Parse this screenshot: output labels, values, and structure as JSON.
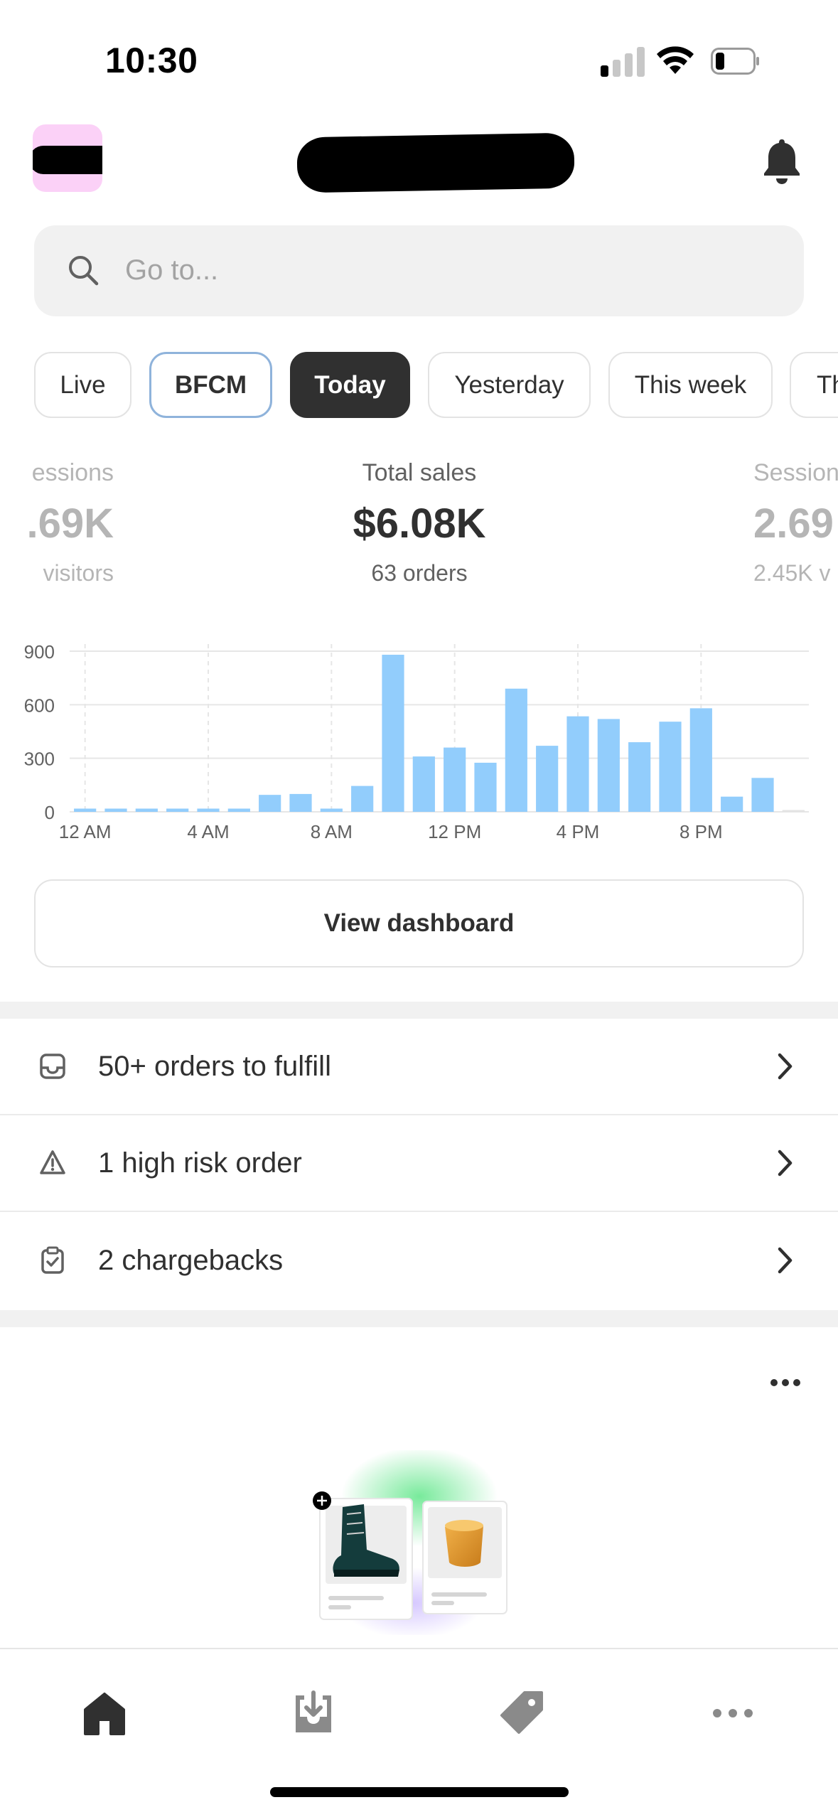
{
  "status_bar": {
    "time": "10:30"
  },
  "search": {
    "placeholder": "Go to..."
  },
  "date_ranges": [
    {
      "label": "Live"
    },
    {
      "label": "BFCM"
    },
    {
      "label": "Today",
      "selected": true
    },
    {
      "label": "Yesterday"
    },
    {
      "label": "This week"
    },
    {
      "label": "Th"
    }
  ],
  "metrics": {
    "left": {
      "label": "essions",
      "value": ".69K",
      "sub": "visitors"
    },
    "center": {
      "label": "Total sales",
      "value": "$6.08K",
      "sub": "63 orders"
    },
    "right": {
      "label": "Session",
      "value": "2.69",
      "sub": "2.45K v"
    }
  },
  "chart_data": {
    "type": "bar",
    "y_ticks": [
      "900",
      "600",
      "300",
      "0"
    ],
    "x_ticks": [
      "12 AM",
      "4 AM",
      "8 AM",
      "12 PM",
      "4 PM",
      "8 PM"
    ],
    "ylim": [
      0,
      900
    ],
    "grid": true,
    "bar_color": "#92cdfc",
    "values": [
      18,
      18,
      18,
      18,
      18,
      18,
      95,
      100,
      18,
      145,
      880,
      310,
      360,
      275,
      690,
      370,
      535,
      520,
      390,
      505,
      580,
      85,
      190,
      10
    ]
  },
  "dashboard_button": {
    "label": "View dashboard"
  },
  "tasks": [
    {
      "icon": "inbox-icon",
      "label": "50+ orders to fulfill"
    },
    {
      "icon": "alert-triangle-icon",
      "label": "1 high risk order"
    },
    {
      "icon": "clipboard-check-icon",
      "label": "2 chargebacks"
    }
  ],
  "tabbar": [
    {
      "icon": "home-icon",
      "selected": true
    },
    {
      "icon": "orders-icon"
    },
    {
      "icon": "products-tag-icon"
    },
    {
      "icon": "more-icon"
    }
  ],
  "colors": {
    "accent_chip": "#303030",
    "bfcm_border": "#8fb3db",
    "avatar_bg": "#fbd1f7"
  }
}
